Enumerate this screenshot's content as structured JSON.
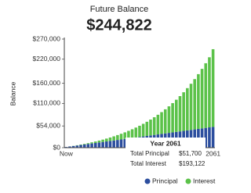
{
  "chart_data": {
    "type": "stacked_bar",
    "title": "Future Balance",
    "subtitle": "$244,822",
    "y_label": "Balance",
    "categories": [
      "Now",
      null,
      null,
      null,
      null,
      null,
      null,
      null,
      null,
      null,
      null,
      null,
      null,
      null,
      null,
      null,
      null,
      null,
      null,
      null,
      null,
      null,
      null,
      null,
      null,
      null,
      null,
      null,
      null,
      null,
      null,
      null,
      null,
      null,
      null,
      null,
      null,
      null,
      null,
      null,
      "2061"
    ],
    "series": [
      {
        "name": "Principal",
        "color": "#2c4e9e",
        "values": [
          1700,
          2950,
          4200,
          5450,
          6700,
          7950,
          9200,
          10450,
          11700,
          12950,
          14200,
          15450,
          16700,
          17950,
          19200,
          20450,
          21700,
          22950,
          24200,
          25450,
          26700,
          27950,
          29200,
          30450,
          31700,
          32950,
          34200,
          35450,
          36700,
          37950,
          39200,
          40450,
          41700,
          42950,
          44200,
          45450,
          46700,
          47950,
          49200,
          50450,
          51700
        ]
      },
      {
        "name": "Interest",
        "color": "#5cc24a",
        "values": [
          0,
          110,
          309,
          602,
          995,
          1495,
          2109,
          2844,
          3708,
          4710,
          5858,
          7162,
          8632,
          10279,
          12114,
          14149,
          16398,
          18874,
          21593,
          24570,
          27821,
          31365,
          35220,
          39407,
          43948,
          48865,
          54183,
          59928,
          66128,
          72812,
          80012,
          87761,
          96095,
          105052,
          114672,
          124999,
          136078,
          147959,
          160693,
          174336,
          193122
        ]
      }
    ],
    "ylim": [
      0,
      270000
    ],
    "yticks": [
      {
        "value": 0,
        "label": "$0"
      },
      {
        "value": 54000,
        "label": "$54,000"
      },
      {
        "value": 110000,
        "label": "$110,000"
      },
      {
        "value": 160000,
        "label": "$160,000"
      },
      {
        "value": 220000,
        "label": "$220,000"
      },
      {
        "value": 270000,
        "label": "$270,000"
      }
    ],
    "tooltip": {
      "title": "Year 2061",
      "rows": [
        {
          "label": "Total Principal",
          "value": "$51,700"
        },
        {
          "label": "Total Interest",
          "value": "$193,122"
        }
      ]
    },
    "legend": "bottom-right"
  }
}
